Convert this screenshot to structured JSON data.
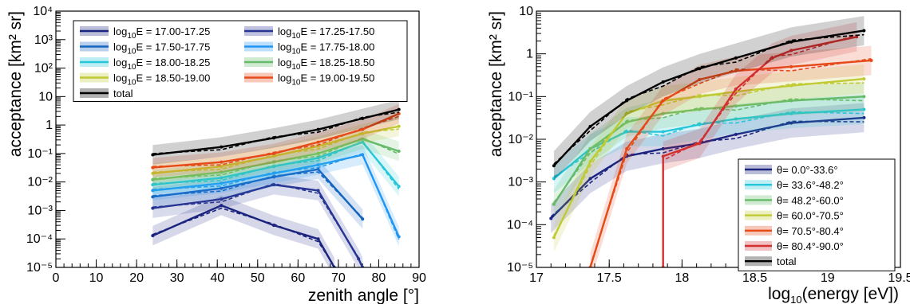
{
  "chart_data": [
    {
      "type": "line",
      "xlabel": "zenith angle [°]",
      "ylabel": "acceptance [km² sr]",
      "xlim": [
        0,
        90
      ],
      "ylim": [
        1e-05,
        10000.0
      ],
      "yscale": "log",
      "x_ticks": [
        "0",
        "10",
        "20",
        "30",
        "40",
        "50",
        "60",
        "70",
        "80",
        "90"
      ],
      "y_ticks": [
        "10⁻⁵",
        "10⁻⁴",
        "10⁻³",
        "10⁻²",
        "10⁻¹",
        "1",
        "10",
        "10²",
        "10³",
        "10⁴"
      ],
      "legend_position": "top-left",
      "legend_columns": 2,
      "series": [
        {
          "name": "log10E = 17.00-17.25",
          "legend": [
            "log",
            "10",
            "E = 17.00-17.25"
          ],
          "color": "#1a237e",
          "x": [
            24,
            41,
            54,
            65,
            69
          ],
          "y": [
            0.00013,
            0.0015,
            0.0003,
            0.0001,
            1e-05
          ]
        },
        {
          "name": "log10E = 17.25-17.50",
          "legend": [
            "log",
            "10",
            "E = 17.25-17.50"
          ],
          "color": "#283593",
          "x": [
            24,
            41,
            54,
            65,
            75,
            76
          ],
          "y": [
            0.0012,
            0.0025,
            0.008,
            0.005,
            2e-05,
            1e-05
          ]
        },
        {
          "name": "log10E = 17.50-17.75",
          "legend": [
            "log",
            "10",
            "E = 17.50-17.75"
          ],
          "color": "#1565c0",
          "x": [
            24,
            41,
            54,
            65,
            76
          ],
          "y": [
            0.003,
            0.006,
            0.015,
            0.028,
            0.0005
          ]
        },
        {
          "name": "log10E = 17.75-18.00",
          "legend": [
            "log",
            "10",
            "E = 17.75-18.00"
          ],
          "color": "#2196f3",
          "x": [
            24,
            41,
            54,
            65,
            76,
            85
          ],
          "y": [
            0.005,
            0.009,
            0.02,
            0.04,
            0.09,
            0.00012
          ]
        },
        {
          "name": "log10E = 18.00-18.25",
          "legend": [
            "log",
            "10",
            "E = 18.00-18.25"
          ],
          "color": "#26c6da",
          "x": [
            24,
            41,
            54,
            65,
            76,
            85
          ],
          "y": [
            0.008,
            0.014,
            0.035,
            0.07,
            0.25,
            0.007
          ]
        },
        {
          "name": "log10E = 18.25-18.50",
          "legend": [
            "log",
            "10",
            "E = 18.25-18.50"
          ],
          "color": "#66bb6a",
          "x": [
            24,
            41,
            54,
            65,
            76,
            85
          ],
          "y": [
            0.012,
            0.022,
            0.05,
            0.1,
            0.32,
            0.12
          ]
        },
        {
          "name": "log10E = 18.50-19.00",
          "legend": [
            "log",
            "10",
            "E = 18.50-19.00"
          ],
          "color": "#c0ca33",
          "x": [
            24,
            41,
            54,
            65,
            76,
            85
          ],
          "y": [
            0.02,
            0.035,
            0.08,
            0.18,
            0.5,
            0.9
          ]
        },
        {
          "name": "log10E = 19.00-19.50",
          "legend": [
            "log",
            "10",
            "E = 19.00-19.50"
          ],
          "color": "#e64a19",
          "x": [
            24,
            41,
            54,
            65,
            76,
            85
          ],
          "y": [
            0.032,
            0.05,
            0.1,
            0.25,
            0.7,
            2.5
          ]
        },
        {
          "name": "total",
          "legend": [
            "total",
            "",
            ""
          ],
          "color": "#000000",
          "x": [
            24,
            41,
            54,
            65,
            76,
            85
          ],
          "y": [
            0.09,
            0.17,
            0.35,
            0.7,
            1.7,
            3.5
          ]
        }
      ]
    },
    {
      "type": "line",
      "xlabel": "log10(energy [eV])",
      "xlabel_parts": [
        "log",
        "10",
        "(energy [eV])"
      ],
      "ylabel": "acceptance [km² sr]",
      "xlim": [
        17,
        19.5
      ],
      "ylim": [
        1e-05,
        10
      ],
      "yscale": "log",
      "x_ticks": [
        "17",
        "17.5",
        "18",
        "18.5",
        "19",
        "19.5"
      ],
      "y_ticks": [
        "10⁻⁵",
        "10⁻⁴",
        "10⁻³",
        "10⁻²",
        "10⁻¹",
        "1",
        "10"
      ],
      "legend_position": "bottom-right",
      "series": [
        {
          "name": "θ= 0.0°-33.6°",
          "color": "#1a237e",
          "x": [
            17.1,
            17.37,
            17.62,
            17.87,
            18.12,
            18.37,
            18.75,
            19.25
          ],
          "y": [
            0.00014,
            0.0012,
            0.004,
            0.006,
            0.008,
            0.013,
            0.024,
            0.032
          ]
        },
        {
          "name": "θ= 33.6°-48.2°",
          "color": "#26c6da",
          "x": [
            17.12,
            17.37,
            17.62,
            17.87,
            18.12,
            18.37,
            18.75,
            19.25
          ],
          "y": [
            0.0012,
            0.006,
            0.015,
            0.015,
            0.022,
            0.03,
            0.04,
            0.05
          ]
        },
        {
          "name": "θ= 48.2°-60.0°",
          "color": "#66bb6a",
          "x": [
            17.12,
            17.37,
            17.62,
            17.87,
            18.12,
            18.37,
            18.75,
            19.25
          ],
          "y": [
            0.0003,
            0.006,
            0.025,
            0.04,
            0.05,
            0.06,
            0.08,
            0.1
          ]
        },
        {
          "name": "θ= 60.0°-70.5°",
          "color": "#c0ca33",
          "x": [
            17.12,
            17.37,
            17.62,
            17.87,
            18.12,
            18.37,
            18.75,
            19.25
          ],
          "y": [
            5e-05,
            0.003,
            0.04,
            0.08,
            0.1,
            0.13,
            0.18,
            0.26
          ]
        },
        {
          "name": "θ= 70.5°-80.4°",
          "color": "#e64a19",
          "x": [
            17.37,
            17.62,
            17.87,
            18.12,
            18.37,
            18.75,
            19.3
          ],
          "y": [
            1e-05,
            0.006,
            0.08,
            0.25,
            0.4,
            0.5,
            0.7
          ]
        },
        {
          "name": "θ= 80.4°-90.0°",
          "color": "#d32f2f",
          "x": [
            17.87,
            17.87,
            18.12,
            18.37,
            18.62,
            18.75,
            19.2
          ],
          "y": [
            1e-05,
            0.004,
            0.008,
            0.15,
            0.8,
            1.2,
            2.5
          ]
        },
        {
          "name": "total",
          "color": "#000000",
          "x": [
            17.12,
            17.37,
            17.62,
            17.87,
            18.12,
            18.37,
            18.75,
            19.25
          ],
          "y": [
            0.0024,
            0.02,
            0.08,
            0.22,
            0.45,
            0.8,
            1.9,
            3.5
          ]
        }
      ]
    }
  ]
}
